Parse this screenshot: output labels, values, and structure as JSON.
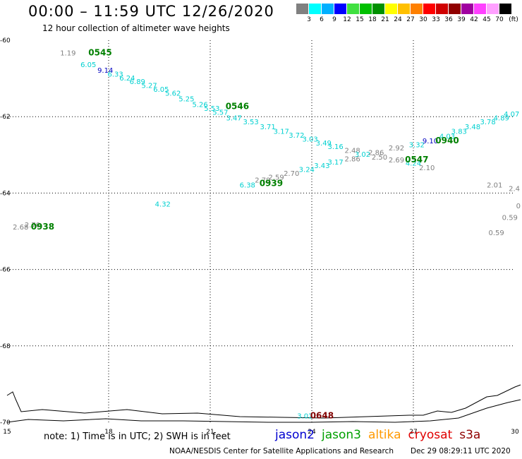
{
  "header": {
    "title": "00:00 – 11:59 UTC 12/26/2020",
    "subtitle": "12 hour collection of altimeter wave heights"
  },
  "legend": {
    "unit": "(ft)",
    "colors": [
      "#808080",
      "#00ffff",
      "#00b0ff",
      "#0000ff",
      "#40e040",
      "#00c000",
      "#009000",
      "#ffff00",
      "#ffc000",
      "#ff8000",
      "#ff0000",
      "#d00000",
      "#900000",
      "#a000a0",
      "#ff40ff",
      "#ffa0ff",
      "#000000"
    ],
    "labels": [
      "3",
      "6",
      "9",
      "12",
      "15",
      "18",
      "21",
      "24",
      "27",
      "30",
      "33",
      "36",
      "39",
      "42",
      "45",
      "70"
    ]
  },
  "axes": {
    "x_ticks": [
      15,
      18,
      21,
      24,
      27,
      30
    ],
    "y_ticks": [
      -60,
      -62,
      -64,
      -66,
      -68,
      -70
    ],
    "x_range": [
      15,
      30
    ],
    "y_range": [
      -60,
      -70
    ]
  },
  "passes": [
    {
      "label": "0545",
      "lon": 17.75,
      "lat": -60.4,
      "color": "#008000"
    },
    {
      "label": "0546",
      "lon": 21.8,
      "lat": -61.8,
      "color": "#008000"
    },
    {
      "label": "0547",
      "lon": 27.1,
      "lat": -63.2,
      "color": "#008000"
    },
    {
      "label": "0939",
      "lon": 22.8,
      "lat": -63.82,
      "color": "#008000"
    },
    {
      "label": "0940",
      "lon": 28.0,
      "lat": -62.7,
      "color": "#008000"
    },
    {
      "label": "0938",
      "lon": 16.05,
      "lat": -64.95,
      "color": "#008000"
    },
    {
      "label": "0648",
      "lon": 24.3,
      "lat": -69.9,
      "color": "#800000"
    }
  ],
  "observations": [
    {
      "v": "1.19",
      "lon": 16.8,
      "lat": -60.4,
      "c": "#808080"
    },
    {
      "v": "6.05",
      "lon": 17.4,
      "lat": -60.7,
      "c": "#00d0d0"
    },
    {
      "v": "9.14",
      "lon": 17.9,
      "lat": -60.85,
      "c": "#0000c0"
    },
    {
      "v": "6.33",
      "lon": 18.2,
      "lat": -60.95,
      "c": "#00d0d0"
    },
    {
      "v": "6.24",
      "lon": 18.55,
      "lat": -61.05,
      "c": "#00d0d0"
    },
    {
      "v": "6.89",
      "lon": 18.85,
      "lat": -61.15,
      "c": "#00d0d0"
    },
    {
      "v": "5.27",
      "lon": 19.2,
      "lat": -61.25,
      "c": "#00d0d0"
    },
    {
      "v": "6.05",
      "lon": 19.55,
      "lat": -61.35,
      "c": "#00d0d0"
    },
    {
      "v": "5.62",
      "lon": 19.9,
      "lat": -61.45,
      "c": "#00d0d0"
    },
    {
      "v": "5.25",
      "lon": 20.3,
      "lat": -61.6,
      "c": "#00d0d0"
    },
    {
      "v": "5.26",
      "lon": 20.7,
      "lat": -61.75,
      "c": "#00d0d0"
    },
    {
      "v": "5.53",
      "lon": 21.05,
      "lat": -61.85,
      "c": "#00d0d0"
    },
    {
      "v": "5.57",
      "lon": 21.3,
      "lat": -61.95,
      "c": "#00d0d0"
    },
    {
      "v": "3.47",
      "lon": 21.7,
      "lat": -62.1,
      "c": "#00d0d0"
    },
    {
      "v": "3.53",
      "lon": 22.2,
      "lat": -62.2,
      "c": "#00d0d0"
    },
    {
      "v": "3.71",
      "lon": 22.7,
      "lat": -62.33,
      "c": "#00d0d0"
    },
    {
      "v": "3.17",
      "lon": 23.1,
      "lat": -62.45,
      "c": "#00d0d0"
    },
    {
      "v": "3.72",
      "lon": 23.55,
      "lat": -62.55,
      "c": "#00d0d0"
    },
    {
      "v": "3.03",
      "lon": 23.95,
      "lat": -62.65,
      "c": "#00d0d0"
    },
    {
      "v": "3.49",
      "lon": 24.35,
      "lat": -62.75,
      "c": "#00d0d0"
    },
    {
      "v": "3.16",
      "lon": 24.7,
      "lat": -62.85,
      "c": "#00d0d0"
    },
    {
      "v": "2.48",
      "lon": 25.2,
      "lat": -62.95,
      "c": "#808080"
    },
    {
      "v": "3.02",
      "lon": 25.5,
      "lat": -63.05,
      "c": "#00d0d0"
    },
    {
      "v": "2.86",
      "lon": 25.9,
      "lat": -63.0,
      "c": "#808080"
    },
    {
      "v": "2.92",
      "lon": 26.5,
      "lat": -62.88,
      "c": "#808080"
    },
    {
      "v": "3.32",
      "lon": 27.1,
      "lat": -62.8,
      "c": "#00d0d0"
    },
    {
      "v": "9.10",
      "lon": 27.5,
      "lat": -62.7,
      "c": "#0000c0"
    },
    {
      "v": "4.03",
      "lon": 28.0,
      "lat": -62.58,
      "c": "#00d0d0"
    },
    {
      "v": "3.83",
      "lon": 28.35,
      "lat": -62.45,
      "c": "#00d0d0"
    },
    {
      "v": "3.48",
      "lon": 28.75,
      "lat": -62.33,
      "c": "#00d0d0"
    },
    {
      "v": "3.78",
      "lon": 29.2,
      "lat": -62.2,
      "c": "#00d0d0"
    },
    {
      "v": "4.89",
      "lon": 29.6,
      "lat": -62.1,
      "c": "#00d0d0"
    },
    {
      "v": "4.07",
      "lon": 29.9,
      "lat": -62.0,
      "c": "#00d0d0"
    },
    {
      "v": "2.86",
      "lon": 25.2,
      "lat": -63.17,
      "c": "#808080"
    },
    {
      "v": "2.50",
      "lon": 26.0,
      "lat": -63.12,
      "c": "#808080"
    },
    {
      "v": "2.69",
      "lon": 26.5,
      "lat": -63.2,
      "c": "#808080"
    },
    {
      "v": "4.24",
      "lon": 27.0,
      "lat": -63.28,
      "c": "#00d0d0"
    },
    {
      "v": "2.10",
      "lon": 27.4,
      "lat": -63.4,
      "c": "#808080"
    },
    {
      "v": "3.17",
      "lon": 24.7,
      "lat": -63.25,
      "c": "#00d0d0"
    },
    {
      "v": "3.43",
      "lon": 24.3,
      "lat": -63.35,
      "c": "#00d0d0"
    },
    {
      "v": "3.24",
      "lon": 23.85,
      "lat": -63.45,
      "c": "#00d0d0"
    },
    {
      "v": "2.70",
      "lon": 23.4,
      "lat": -63.55,
      "c": "#808080"
    },
    {
      "v": "2.59",
      "lon": 22.95,
      "lat": -63.65,
      "c": "#808080"
    },
    {
      "v": "2.79",
      "lon": 22.55,
      "lat": -63.72,
      "c": "#808080"
    },
    {
      "v": "6.38",
      "lon": 22.1,
      "lat": -63.85,
      "c": "#00d0d0"
    },
    {
      "v": "4.32",
      "lon": 19.6,
      "lat": -64.35,
      "c": "#00d0d0"
    },
    {
      "v": "2.68",
      "lon": 15.4,
      "lat": -64.95,
      "c": "#808080"
    },
    {
      "v": "2.70",
      "lon": 15.75,
      "lat": -64.9,
      "c": "#808080"
    },
    {
      "v": "2.01",
      "lon": 29.4,
      "lat": -63.85,
      "c": "#808080"
    },
    {
      "v": "2.4",
      "lon": 29.98,
      "lat": -63.95,
      "c": "#808080"
    },
    {
      "v": "0",
      "lon": 30.1,
      "lat": -64.4,
      "c": "#808080"
    },
    {
      "v": "0.59",
      "lon": 29.85,
      "lat": -64.7,
      "c": "#808080"
    },
    {
      "v": "0.59",
      "lon": 29.45,
      "lat": -65.1,
      "c": "#808080"
    },
    {
      "v": "3.02",
      "lon": 23.8,
      "lat": -69.9,
      "c": "#00d0d0"
    }
  ],
  "footer": {
    "note": "note: 1) Time is in UTC; 2) SWH is in feet",
    "satellites": [
      {
        "name": "jason2",
        "color": "#0000d0"
      },
      {
        "name": "jason3",
        "color": "#00a000"
      },
      {
        "name": "altika",
        "color": "#ff9900"
      },
      {
        "name": "cryosat",
        "color": "#e00000"
      },
      {
        "name": "s3a",
        "color": "#900000"
      }
    ],
    "credit": "NOAA/NESDIS Center for Satellite Applications and Research",
    "timestamp": "Dec 29 08:29:11 UTC 2020"
  }
}
